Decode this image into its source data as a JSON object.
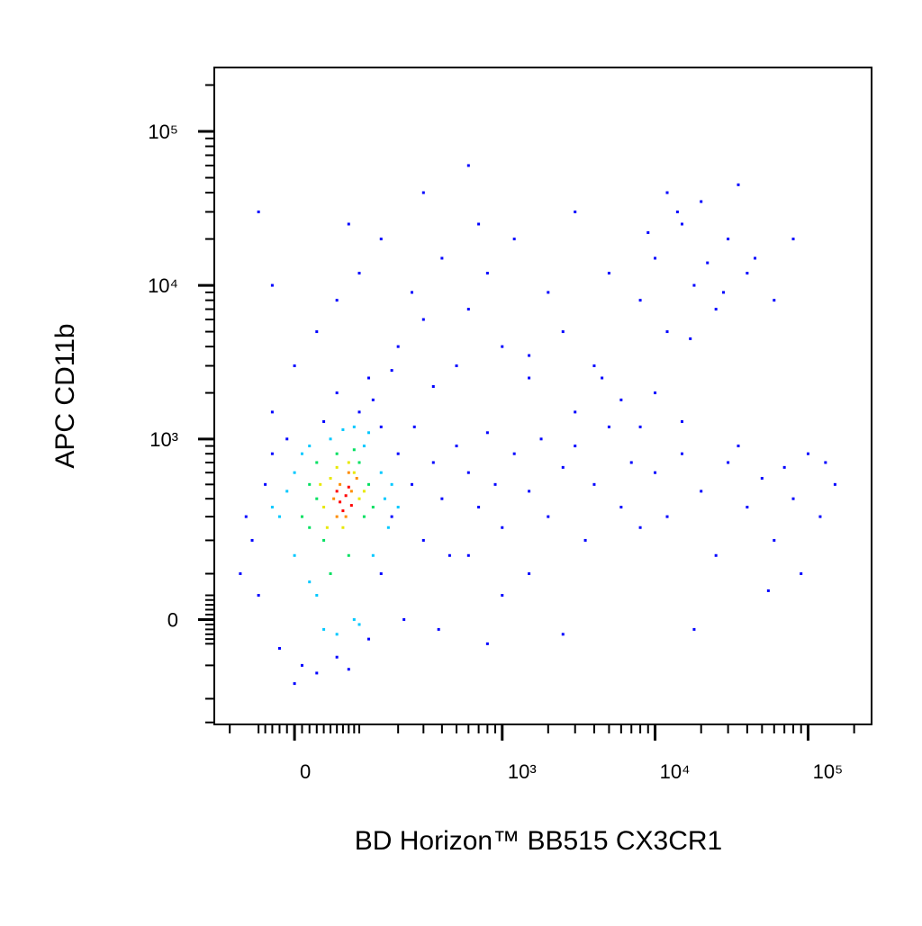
{
  "chart_data": {
    "type": "scatter",
    "x_label": "BD Horizon™ BB515 CX3CR1",
    "y_label": "APC CD11b",
    "xscale": "biexponential",
    "yscale": "biexponential",
    "xlim": [
      -134,
      260000
    ],
    "ylim": [
      -310,
      260000
    ],
    "xticks": [
      0,
      {
        "value": 1000,
        "label": "10³"
      },
      {
        "value": 10000,
        "label": "10⁴"
      },
      {
        "value": 100000,
        "label": "10⁵"
      }
    ],
    "yticks": [
      0,
      {
        "value": 1000,
        "label": "10³"
      },
      {
        "value": 10000,
        "label": "10⁴"
      },
      {
        "value": 100000,
        "label": "10⁵"
      }
    ],
    "xminorticks": [
      -100,
      -50,
      -40,
      -30,
      -20,
      -10,
      10,
      20,
      30,
      40,
      50,
      60,
      70,
      80,
      90,
      100,
      200,
      300,
      400,
      500,
      600,
      700,
      800,
      900,
      2000,
      3000,
      4000,
      5000,
      6000,
      7000,
      8000,
      9000,
      20000,
      30000,
      40000,
      50000,
      60000,
      70000,
      80000,
      90000,
      200000
    ],
    "yminorticks": [
      -300,
      -200,
      -100,
      -50,
      -40,
      -30,
      -20,
      -10,
      10,
      20,
      30,
      40,
      50,
      100,
      200,
      300,
      400,
      500,
      600,
      700,
      800,
      900,
      2000,
      3000,
      4000,
      5000,
      6000,
      7000,
      8000,
      9000,
      20000,
      30000,
      40000,
      50000,
      60000,
      70000,
      80000,
      90000,
      200000
    ],
    "series": [
      {
        "color": "#0000ff",
        "x": [
          -60,
          -40,
          -50,
          -20,
          10,
          30,
          60,
          120,
          150,
          180,
          200,
          150,
          100,
          40,
          -10,
          -30,
          250,
          300,
          220,
          80,
          0,
          -70,
          -80,
          -30,
          130,
          260,
          350,
          400,
          450,
          380,
          500,
          600,
          700,
          800,
          900,
          1000,
          1200,
          1500,
          1800,
          2000,
          2500,
          3000,
          3500,
          4000,
          5000,
          6000,
          7000,
          600,
          800,
          1000,
          1500,
          2500,
          0,
          30,
          60,
          100,
          150,
          200,
          300,
          400,
          500,
          -30,
          80,
          120,
          250,
          350,
          600,
          800,
          1000,
          1200,
          1500,
          2000,
          2500,
          3000,
          4000,
          5000,
          300,
          600,
          700,
          -50,
          60,
          180,
          8000,
          10000,
          12000,
          15000,
          18000,
          20000,
          25000,
          30000,
          35000,
          40000,
          14000,
          22000,
          9000,
          28000,
          17000,
          45000,
          12000,
          60000,
          80000,
          10000,
          12000,
          15000,
          20000,
          25000,
          30000,
          40000,
          50000,
          60000,
          70000,
          80000,
          100000,
          120000,
          150000,
          90000,
          35000,
          55000,
          130000,
          8000,
          18000,
          1500,
          3000,
          4500,
          6000,
          8000,
          10000,
          15000
        ],
        "y": [
          200,
          500,
          50,
          -60,
          -100,
          -120,
          -80,
          -40,
          100,
          300,
          800,
          1200,
          1500,
          1300,
          1000,
          800,
          500,
          200,
          0,
          -110,
          -150,
          300,
          100,
          1500,
          1800,
          1200,
          700,
          400,
          150,
          -20,
          900,
          600,
          350,
          1100,
          500,
          250,
          800,
          450,
          1000,
          300,
          650,
          900,
          200,
          500,
          1200,
          350,
          700,
          150,
          -50,
          50,
          100,
          -30,
          3000,
          5000,
          8000,
          12000,
          20000,
          4000,
          6000,
          15000,
          3000,
          10000,
          25000,
          2500,
          9000,
          2200,
          7000,
          12000,
          4000,
          20000,
          2500,
          9000,
          5000,
          30000,
          3000,
          12000,
          40000,
          60000,
          25000,
          30000,
          2000,
          2800,
          8000,
          15000,
          5000,
          25000,
          10000,
          35000,
          7000,
          20000,
          45000,
          12000,
          30000,
          14000,
          22000,
          9000,
          4500,
          15000,
          40000,
          8000,
          20000,
          600,
          300,
          800,
          450,
          150,
          700,
          350,
          550,
          200,
          650,
          400,
          800,
          300,
          500,
          100,
          900,
          60,
          700,
          250,
          -20,
          3500,
          1500,
          2500,
          1800,
          1200,
          2000,
          1300
        ]
      },
      {
        "color": "#00c8ff",
        "x": [
          -20,
          0,
          0,
          20,
          30,
          50,
          60,
          90,
          110,
          130,
          150,
          160,
          -10,
          10,
          40,
          100,
          170,
          120,
          70,
          -30,
          180,
          200,
          90,
          20
        ],
        "y": [
          300,
          150,
          600,
          900,
          50,
          1000,
          -30,
          0,
          900,
          150,
          600,
          400,
          450,
          800,
          -20,
          -10,
          250,
          1100,
          1150,
          350,
          500,
          350,
          1200,
          80
        ]
      },
      {
        "color": "#00e060",
        "x": [
          10,
          20,
          30,
          40,
          60,
          80,
          100,
          110,
          120,
          50,
          30,
          90,
          130,
          20
        ],
        "y": [
          300,
          500,
          700,
          200,
          800,
          150,
          700,
          300,
          500,
          100,
          400,
          850,
          350,
          250
        ]
      },
      {
        "color": "#e8e800",
        "x": [
          40,
          50,
          60,
          70,
          90,
          100,
          45,
          110,
          35,
          80
        ],
        "y": [
          350,
          550,
          650,
          250,
          600,
          400,
          250,
          450,
          500,
          700
        ]
      },
      {
        "color": "#ff8c00",
        "x": [
          55,
          65,
          75,
          85,
          95,
          60,
          80
        ],
        "y": [
          400,
          500,
          300,
          450,
          550,
          300,
          600
        ]
      },
      {
        "color": "#ff0000",
        "x": [
          65,
          75,
          70,
          85,
          60,
          80
        ],
        "y": [
          380,
          420,
          330,
          360,
          450,
          480
        ]
      }
    ]
  }
}
